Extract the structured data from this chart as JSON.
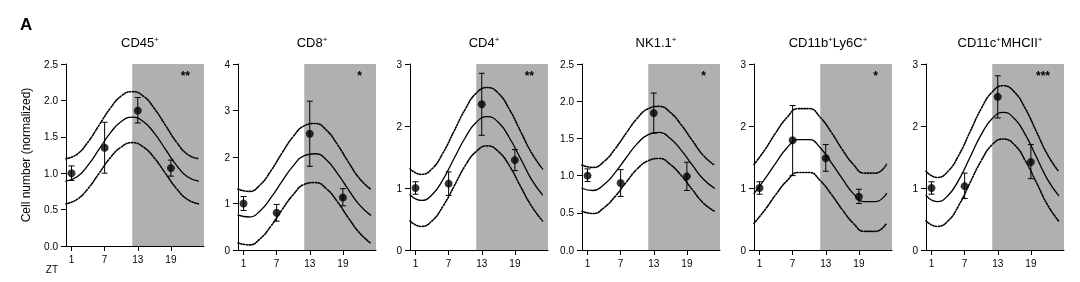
{
  "chart_data": [
    {
      "type": "scatter",
      "title": "CD45$^{+}$",
      "xlabel": "ZT",
      "ylabel": "Cell number (normalized)",
      "annotations": [
        "A",
        "**"
      ],
      "xlim": [
        0,
        25
      ],
      "xticks": [
        1,
        7,
        13,
        19
      ],
      "ylim": [
        0,
        2.5
      ],
      "yticks": [
        {
          "value": 0,
          "label": "0.0"
        },
        0.5,
        {
          "value": 1,
          "label": "1.0"
        },
        1.5,
        {
          "value": 2,
          "label": "2.0"
        },
        2.5
      ],
      "bands": [
        {
          "axis": "x",
          "from": 12,
          "to": 25,
          "color": "#b0b0b0"
        }
      ],
      "series": [
        {
          "color": "#000000",
          "marker": "circle",
          "x": [
            1,
            7,
            13,
            19
          ],
          "values": [
            1.0,
            1.35,
            1.86,
            1.07
          ],
          "errors": [
            [
              0.9,
              1.1
            ],
            [
              1.0,
              1.7
            ],
            [
              1.69,
              2.04
            ],
            [
              0.96,
              1.18
            ]
          ]
        },
        {
          "type": "line",
          "color": "#000000",
          "marker": "none",
          "line_style": "solid",
          "x": [
            0,
            2,
            4,
            6,
            8,
            10,
            12,
            14,
            16,
            18,
            20,
            22,
            24
          ],
          "values": [
            0.89,
            0.95,
            1.11,
            1.33,
            1.55,
            1.71,
            1.77,
            1.71,
            1.55,
            1.33,
            1.11,
            0.95,
            0.89
          ]
        },
        {
          "type": "line",
          "color": "#000000",
          "marker": "none",
          "line_style": "dotted",
          "x": [
            0,
            2,
            4,
            6,
            8,
            10,
            12,
            14,
            16,
            18,
            20,
            22,
            24
          ],
          "values": [
            1.2,
            1.26,
            1.43,
            1.66,
            1.89,
            2.06,
            2.12,
            2.06,
            1.89,
            1.66,
            1.43,
            1.26,
            1.2
          ]
        },
        {
          "type": "line",
          "color": "#000000",
          "marker": "none",
          "line_style": "dotted",
          "x": [
            0,
            2,
            4,
            6,
            8,
            10,
            12,
            14,
            16,
            18,
            20,
            22,
            24
          ],
          "values": [
            0.58,
            0.64,
            0.79,
            1.0,
            1.21,
            1.36,
            1.42,
            1.36,
            1.21,
            1.0,
            0.79,
            0.64,
            0.58
          ]
        }
      ]
    },
    {
      "type": "scatter",
      "title": "CD8$^{+}$",
      "annotations": [
        "*"
      ],
      "xlim": [
        0,
        25
      ],
      "xticks": [
        1,
        7,
        13,
        19
      ],
      "ylim": [
        0,
        4
      ],
      "yticks": [
        0,
        1,
        2,
        3,
        4
      ],
      "bands": [
        {
          "axis": "x",
          "from": 12,
          "to": 25,
          "color": "#b0b0b0"
        }
      ],
      "series": [
        {
          "color": "#000000",
          "marker": "circle",
          "x": [
            1,
            7,
            13,
            19
          ],
          "values": [
            1.0,
            0.8,
            2.5,
            1.13
          ],
          "errors": [
            [
              0.85,
              1.15
            ],
            [
              0.62,
              0.98
            ],
            [
              1.8,
              3.2
            ],
            [
              0.95,
              1.32
            ]
          ]
        },
        {
          "type": "line",
          "color": "#000000",
          "marker": "none",
          "line_style": "solid",
          "x": [
            0,
            2,
            4,
            6,
            8,
            10,
            12,
            14,
            16,
            18,
            20,
            22,
            24
          ],
          "values": [
            0.75,
            0.71,
            0.84,
            1.13,
            1.48,
            1.81,
            2.03,
            2.07,
            1.94,
            1.65,
            1.3,
            0.97,
            0.75
          ]
        },
        {
          "type": "line",
          "color": "#000000",
          "marker": "none",
          "line_style": "dotted",
          "x": [
            0,
            2,
            4,
            6,
            8,
            10,
            12,
            14,
            16,
            18,
            20,
            22,
            24
          ],
          "values": [
            1.31,
            1.26,
            1.4,
            1.71,
            2.09,
            2.44,
            2.67,
            2.72,
            2.58,
            2.27,
            1.89,
            1.54,
            1.31
          ]
        },
        {
          "type": "line",
          "color": "#000000",
          "marker": "none",
          "line_style": "dotted",
          "x": [
            0,
            2,
            4,
            6,
            8,
            10,
            12,
            14,
            16,
            18,
            20,
            22,
            24
          ],
          "values": [
            0.15,
            0.11,
            0.24,
            0.52,
            0.87,
            1.19,
            1.41,
            1.45,
            1.32,
            1.04,
            0.69,
            0.37,
            0.15
          ]
        }
      ]
    },
    {
      "type": "scatter",
      "title": "CD4$^{+}$",
      "annotations": [
        "**"
      ],
      "xlim": [
        0,
        25
      ],
      "xticks": [
        1,
        7,
        13,
        19
      ],
      "ylim": [
        0,
        3
      ],
      "yticks": [
        0,
        1,
        2,
        3
      ],
      "bands": [
        {
          "axis": "x",
          "from": 12,
          "to": 25,
          "color": "#b0b0b0"
        }
      ],
      "series": [
        {
          "color": "#000000",
          "marker": "circle",
          "x": [
            1,
            7,
            13,
            19
          ],
          "values": [
            1.0,
            1.07,
            2.35,
            1.45
          ],
          "errors": [
            [
              0.9,
              1.1
            ],
            [
              0.88,
              1.26
            ],
            [
              1.85,
              2.85
            ],
            [
              1.28,
              1.62
            ]
          ]
        },
        {
          "type": "line",
          "color": "#000000",
          "marker": "none",
          "line_style": "solid",
          "x": [
            0,
            2,
            4,
            6,
            8,
            10,
            12,
            14,
            16,
            18,
            20,
            22,
            24
          ],
          "values": [
            0.89,
            0.8,
            0.89,
            1.14,
            1.48,
            1.81,
            2.06,
            2.15,
            2.06,
            1.81,
            1.48,
            1.14,
            0.89
          ]
        },
        {
          "type": "line",
          "color": "#000000",
          "marker": "none",
          "line_style": "dotted",
          "x": [
            0,
            2,
            4,
            6,
            8,
            10,
            12,
            14,
            16,
            18,
            20,
            22,
            24
          ],
          "values": [
            1.31,
            1.22,
            1.31,
            1.57,
            1.92,
            2.27,
            2.53,
            2.62,
            2.53,
            2.27,
            1.92,
            1.57,
            1.31
          ]
        },
        {
          "type": "line",
          "color": "#000000",
          "marker": "none",
          "line_style": "dotted",
          "x": [
            0,
            2,
            4,
            6,
            8,
            10,
            12,
            14,
            16,
            18,
            20,
            22,
            24
          ],
          "values": [
            0.47,
            0.38,
            0.47,
            0.71,
            1.03,
            1.36,
            1.59,
            1.68,
            1.59,
            1.36,
            1.03,
            0.71,
            0.47
          ]
        }
      ]
    },
    {
      "type": "scatter",
      "title": "NK1.1$^{+}$",
      "annotations": [
        "*"
      ],
      "xlim": [
        0,
        25
      ],
      "xticks": [
        1,
        7,
        13,
        19
      ],
      "ylim": [
        0,
        2.5
      ],
      "yticks": [
        {
          "value": 0,
          "label": "0.0"
        },
        0.5,
        {
          "value": 1,
          "label": "1.0"
        },
        1.5,
        {
          "value": 2,
          "label": "2.0"
        },
        2.5
      ],
      "bands": [
        {
          "axis": "x",
          "from": 12,
          "to": 25,
          "color": "#b0b0b0"
        }
      ],
      "series": [
        {
          "color": "#000000",
          "marker": "circle",
          "x": [
            1,
            7,
            13,
            19
          ],
          "values": [
            1.0,
            0.9,
            1.84,
            0.99
          ],
          "errors": [
            [
              0.92,
              1.09
            ],
            [
              0.72,
              1.08
            ],
            [
              1.57,
              2.11
            ],
            [
              0.8,
              1.18
            ]
          ]
        },
        {
          "type": "line",
          "color": "#000000",
          "marker": "none",
          "line_style": "solid",
          "x": [
            0,
            2,
            4,
            6,
            8,
            10,
            12,
            14,
            16,
            18,
            20,
            22,
            24
          ],
          "values": [
            0.83,
            0.8,
            0.88,
            1.04,
            1.24,
            1.43,
            1.55,
            1.58,
            1.5,
            1.34,
            1.14,
            0.95,
            0.83
          ]
        },
        {
          "type": "line",
          "color": "#000000",
          "marker": "none",
          "line_style": "dotted",
          "x": [
            0,
            2,
            4,
            6,
            8,
            10,
            12,
            14,
            16,
            18,
            20,
            22,
            24
          ],
          "values": [
            1.14,
            1.11,
            1.19,
            1.36,
            1.57,
            1.77,
            1.9,
            1.93,
            1.85,
            1.68,
            1.47,
            1.27,
            1.14
          ]
        },
        {
          "type": "line",
          "color": "#000000",
          "marker": "none",
          "line_style": "dotted",
          "x": [
            0,
            2,
            4,
            6,
            8,
            10,
            12,
            14,
            16,
            18,
            20,
            22,
            24
          ],
          "values": [
            0.52,
            0.49,
            0.57,
            0.72,
            0.91,
            1.09,
            1.2,
            1.23,
            1.15,
            1.0,
            0.81,
            0.63,
            0.52
          ]
        }
      ]
    },
    {
      "type": "scatter",
      "title": "CD11b$^{+}$Ly6C$^{+}$",
      "annotations": [
        "*"
      ],
      "xlim": [
        0,
        25
      ],
      "xticks": [
        1,
        7,
        13,
        19
      ],
      "ylim": [
        0,
        3
      ],
      "yticks": [
        0,
        1,
        2,
        3
      ],
      "bands": [
        {
          "axis": "x",
          "from": 12,
          "to": 25,
          "color": "#b0b0b0"
        }
      ],
      "series": [
        {
          "color": "#000000",
          "marker": "circle",
          "x": [
            1,
            7,
            13,
            19
          ],
          "values": [
            1.0,
            1.77,
            1.48,
            0.86
          ],
          "errors": [
            [
              0.9,
              1.1
            ],
            [
              1.2,
              2.33
            ],
            [
              1.27,
              1.7
            ],
            [
              0.75,
              0.98
            ]
          ]
        },
        {
          "type": "line",
          "color": "#000000",
          "marker": "none",
          "line_style": "solid",
          "x": [
            0,
            2,
            4,
            6,
            8,
            10,
            12,
            14,
            16,
            18,
            20,
            22,
            24
          ],
          "values": [
            0.91,
            1.15,
            1.41,
            1.65,
            1.78,
            1.78,
            1.65,
            1.41,
            1.15,
            0.91,
            0.78,
            0.78,
            0.91
          ]
        },
        {
          "type": "line",
          "color": "#000000",
          "marker": "none",
          "line_style": "dotted",
          "x": [
            0,
            2,
            4,
            6,
            8,
            10,
            12,
            14,
            16,
            18,
            20,
            22,
            24
          ],
          "values": [
            1.38,
            1.62,
            1.9,
            2.14,
            2.28,
            2.28,
            2.14,
            1.9,
            1.62,
            1.38,
            1.24,
            1.24,
            1.38
          ]
        },
        {
          "type": "line",
          "color": "#000000",
          "marker": "none",
          "line_style": "dotted",
          "x": [
            0,
            2,
            4,
            6,
            8,
            10,
            12,
            14,
            16,
            18,
            20,
            22,
            24
          ],
          "values": [
            0.43,
            0.65,
            0.9,
            1.12,
            1.25,
            1.25,
            1.12,
            0.9,
            0.65,
            0.43,
            0.3,
            0.3,
            0.43
          ]
        }
      ]
    },
    {
      "type": "scatter",
      "title": "CD11c$^{+}$MHCII$^{+}$",
      "annotations": [
        "***"
      ],
      "xlim": [
        0,
        25
      ],
      "xticks": [
        1,
        7,
        13,
        19
      ],
      "ylim": [
        0,
        3
      ],
      "yticks": [
        0,
        1,
        2,
        3
      ],
      "bands": [
        {
          "axis": "x",
          "from": 12,
          "to": 25,
          "color": "#b0b0b0"
        }
      ],
      "series": [
        {
          "color": "#000000",
          "marker": "circle",
          "x": [
            1,
            7,
            13,
            19
          ],
          "values": [
            1.0,
            1.03,
            2.47,
            1.42
          ],
          "errors": [
            [
              0.9,
              1.1
            ],
            [
              0.83,
              1.24
            ],
            [
              2.13,
              2.81
            ],
            [
              1.15,
              1.7
            ]
          ]
        },
        {
          "type": "line",
          "color": "#000000",
          "marker": "none",
          "line_style": "solid",
          "x": [
            0,
            2,
            4,
            6,
            8,
            10,
            12,
            14,
            16,
            18,
            20,
            22,
            24
          ],
          "values": [
            0.88,
            0.78,
            0.88,
            1.14,
            1.5,
            1.86,
            2.12,
            2.22,
            2.12,
            1.86,
            1.5,
            1.14,
            0.88
          ]
        },
        {
          "type": "line",
          "color": "#000000",
          "marker": "none",
          "line_style": "dotted",
          "x": [
            0,
            2,
            4,
            6,
            8,
            10,
            12,
            14,
            16,
            18,
            20,
            22,
            24
          ],
          "values": [
            1.27,
            1.17,
            1.27,
            1.54,
            1.91,
            2.28,
            2.55,
            2.65,
            2.55,
            2.28,
            1.91,
            1.54,
            1.27
          ]
        },
        {
          "type": "line",
          "color": "#000000",
          "marker": "none",
          "line_style": "dotted",
          "x": [
            0,
            2,
            4,
            6,
            8,
            10,
            12,
            14,
            16,
            18,
            20,
            22,
            24
          ],
          "values": [
            0.47,
            0.38,
            0.47,
            0.73,
            1.09,
            1.44,
            1.7,
            1.79,
            1.7,
            1.44,
            1.09,
            0.73,
            0.47
          ]
        }
      ]
    }
  ]
}
